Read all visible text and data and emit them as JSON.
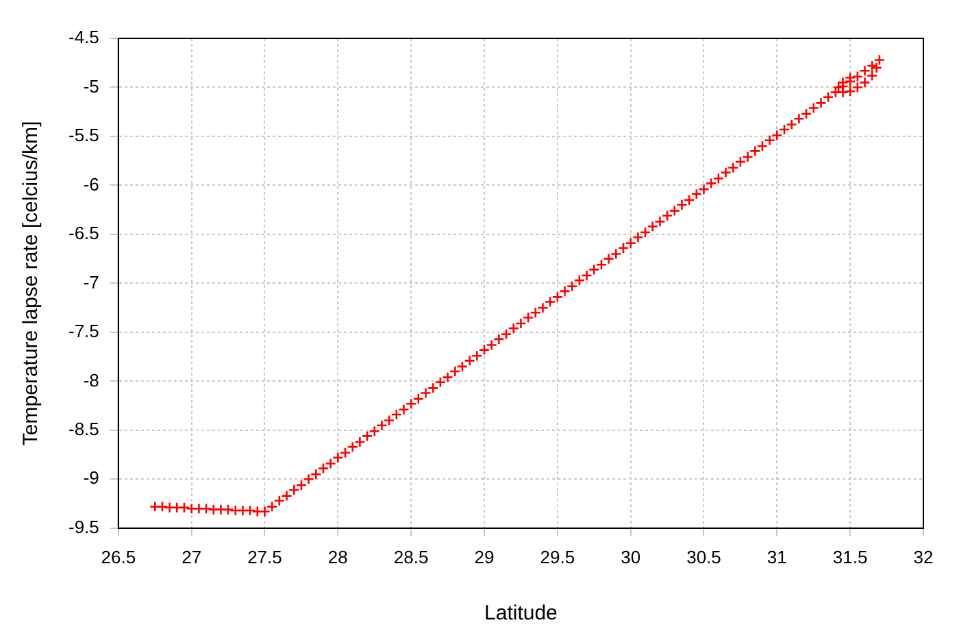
{
  "chart_data": {
    "type": "scatter",
    "xlabel": "Latitude",
    "ylabel": "Temperature lapse rate [celcius/km]",
    "xlim": [
      26.5,
      32
    ],
    "xticks": [
      26.5,
      27,
      27.5,
      28,
      28.5,
      29,
      29.5,
      30,
      30.5,
      31,
      31.5,
      32
    ],
    "ylim": [
      -9.5,
      -4.5
    ],
    "yticks": [
      -9.5,
      -9,
      -8.5,
      -8,
      -7.5,
      -7,
      -6.5,
      -6,
      -5.5,
      -5,
      -4.5
    ],
    "grid": true,
    "legend": false,
    "marker": "cross",
    "series": [
      {
        "color": "#ff0000",
        "x": [
          26.75,
          26.8,
          26.85,
          26.9,
          26.95,
          27,
          27.05,
          27.1,
          27.15,
          27.2,
          27.25,
          27.3,
          27.35,
          27.4,
          27.45,
          27.5,
          27.55,
          27.6,
          27.65,
          27.7,
          27.75,
          27.8,
          27.85,
          27.9,
          27.95,
          28,
          28.05,
          28.1,
          28.15,
          28.2,
          28.25,
          28.3,
          28.35,
          28.4,
          28.45,
          28.5,
          28.55,
          28.6,
          28.65,
          28.7,
          28.75,
          28.8,
          28.85,
          28.9,
          28.95,
          29,
          29.05,
          29.1,
          29.15,
          29.2,
          29.25,
          29.3,
          29.35,
          29.4,
          29.45,
          29.5,
          29.55,
          29.6,
          29.65,
          29.7,
          29.75,
          29.8,
          29.85,
          29.9,
          29.95,
          30,
          30.05,
          30.1,
          30.15,
          30.2,
          30.25,
          30.3,
          30.35,
          30.4,
          30.45,
          30.5,
          30.55,
          30.6,
          30.65,
          30.7,
          30.75,
          30.8,
          30.85,
          30.9,
          30.95,
          31,
          31.05,
          31.1,
          31.15,
          31.2,
          31.25,
          31.3,
          31.35,
          31.4,
          31.45,
          31.5,
          31.55,
          31.6,
          31.65,
          31.7,
          31.68,
          31.65,
          31.6,
          31.55,
          31.5,
          31.45,
          31.42,
          31.45,
          31.5
        ],
        "values": [
          -9.28,
          -9.28,
          -9.29,
          -9.29,
          -9.29,
          -9.3,
          -9.3,
          -9.3,
          -9.31,
          -9.31,
          -9.31,
          -9.32,
          -9.32,
          -9.32,
          -9.33,
          -9.33,
          -9.28,
          -9.22,
          -9.17,
          -9.11,
          -9.06,
          -9,
          -8.95,
          -8.89,
          -8.84,
          -8.78,
          -8.73,
          -8.67,
          -8.62,
          -8.56,
          -8.51,
          -8.45,
          -8.4,
          -8.34,
          -8.29,
          -8.23,
          -8.18,
          -8.12,
          -8.07,
          -8.01,
          -7.96,
          -7.9,
          -7.85,
          -7.79,
          -7.74,
          -7.68,
          -7.63,
          -7.57,
          -7.52,
          -7.46,
          -7.41,
          -7.35,
          -7.3,
          -7.25,
          -7.19,
          -7.14,
          -7.08,
          -7.03,
          -6.97,
          -6.92,
          -6.86,
          -6.81,
          -6.75,
          -6.7,
          -6.64,
          -6.59,
          -6.53,
          -6.48,
          -6.42,
          -6.37,
          -6.31,
          -6.26,
          -6.2,
          -6.15,
          -6.09,
          -6.04,
          -5.98,
          -5.93,
          -5.87,
          -5.82,
          -5.76,
          -5.71,
          -5.65,
          -5.6,
          -5.54,
          -5.49,
          -5.43,
          -5.38,
          -5.32,
          -5.27,
          -5.21,
          -5.16,
          -5.1,
          -5.05,
          -4.99,
          -4.94,
          -4.89,
          -4.83,
          -4.78,
          -4.72,
          -4.8,
          -4.88,
          -4.95,
          -5,
          -5.04,
          -5.05,
          -5,
          -4.95,
          -4.9
        ]
      }
    ]
  }
}
